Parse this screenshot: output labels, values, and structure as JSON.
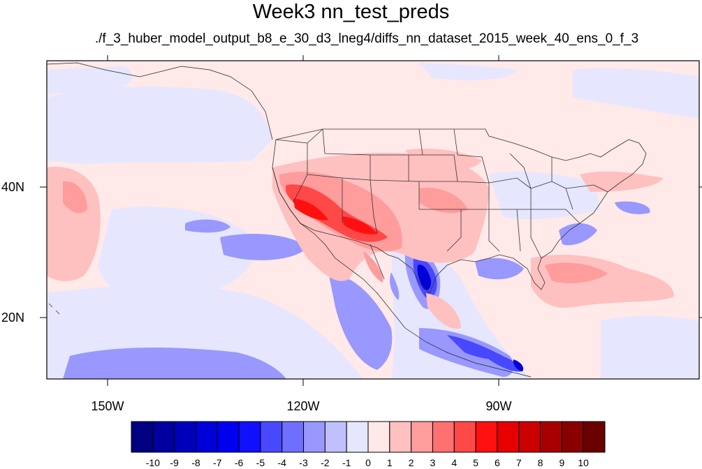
{
  "title": "Week3 nn_test_preds",
  "subtitle": "./f_3_huber_model_output_b8_e_30_d3_lneg4/diffs_nn_dataset_2015_week_40_ens_0_f_3",
  "axes": {
    "lat_ticks": [
      {
        "value": 40,
        "label": "40N"
      },
      {
        "value": 20,
        "label": "20N"
      }
    ],
    "lon_ticks": [
      {
        "value": -150,
        "label": "150W"
      },
      {
        "value": -120,
        "label": "120W"
      },
      {
        "value": -90,
        "label": "90W"
      }
    ],
    "lon_range": [
      -160,
      -60
    ],
    "lat_range": [
      10,
      60
    ]
  },
  "colorbar": {
    "labels": [
      "-10",
      "-9",
      "-8",
      "-7",
      "-6",
      "-5",
      "-4",
      "-3",
      "-2",
      "-1",
      "0",
      "1",
      "2",
      "3",
      "4",
      "5",
      "6",
      "7",
      "8",
      "9",
      "10"
    ],
    "colors": [
      "#000080",
      "#00009e",
      "#0000bc",
      "#0000d8",
      "#0000f0",
      "#1010ff",
      "#4848ff",
      "#6f6fff",
      "#9898ff",
      "#c0c0ff",
      "#e6e6ff",
      "#ffe8e8",
      "#ffc0c0",
      "#ff9c9c",
      "#ff7070",
      "#ff4848",
      "#ff1010",
      "#e60000",
      "#cc0000",
      "#a80000",
      "#880000",
      "#6a0000"
    ]
  },
  "colors": {
    "background": "#ffe9e9",
    "light_blue": "#e6e6ff",
    "blue": "#9898ff",
    "red": "#ff9c9c"
  }
}
